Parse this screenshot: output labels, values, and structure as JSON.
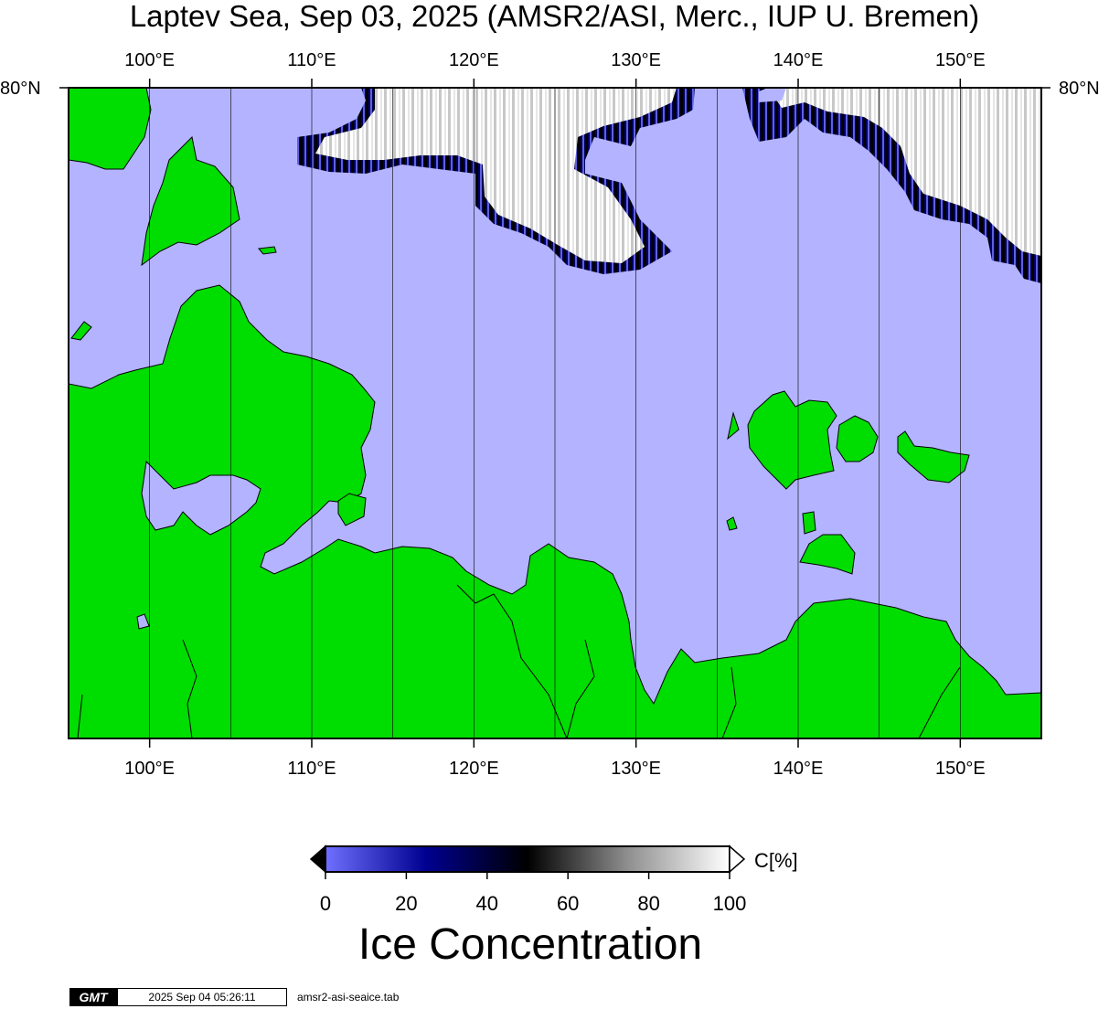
{
  "title": "Laptev Sea, Sep 03, 2025 (AMSR2/ASI, Merc., IUP U. Bremen)",
  "map": {
    "lon_range": [
      95,
      155
    ],
    "lat_label": "80°N",
    "lon_ticks": [
      {
        "lon": 100,
        "label": "100°E"
      },
      {
        "lon": 110,
        "label": "110°E"
      },
      {
        "lon": 120,
        "label": "120°E"
      },
      {
        "lon": 130,
        "label": "130°E"
      },
      {
        "lon": 140,
        "label": "140°E"
      },
      {
        "lon": 150,
        "label": "150°E"
      }
    ],
    "gridline_lons": [
      100,
      105,
      110,
      115,
      120,
      125,
      130,
      135,
      140,
      145,
      150
    ],
    "colors": {
      "open_water": "#b3b3ff",
      "land": "#00dd00",
      "coast": "#000000"
    }
  },
  "colorbar": {
    "unit": "C[%]",
    "ticks": [
      "0",
      "20",
      "40",
      "60",
      "80",
      "100"
    ],
    "title": "Ice Concentration",
    "stops": [
      "#7070ff",
      "#0000a0",
      "#000000",
      "#808080",
      "#ffffff"
    ]
  },
  "footer": {
    "logo": "GMT",
    "timestamp": "2025 Sep 04 05:26:11",
    "file": "amsr2-asi-seaice.tab"
  }
}
